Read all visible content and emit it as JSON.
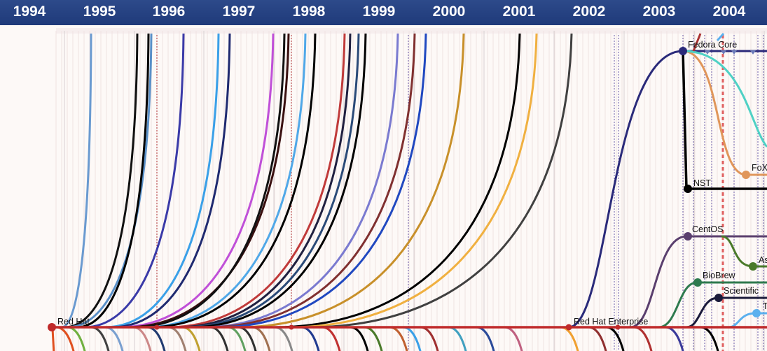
{
  "timeline": {
    "years": [
      "1994",
      "1995",
      "1996",
      "1997",
      "1998",
      "1999",
      "2000",
      "2001",
      "2002",
      "2003",
      "2004"
    ]
  },
  "distros": {
    "red_hat": "Red Hat",
    "red_hat_enterprise": "Red Hat Enterprise",
    "fedora_core": "Fedora Core",
    "nst": "NST",
    "centos": "CentOS",
    "biobrew": "BioBrew",
    "scientific": "Scientific",
    "fox_partial": "FoX",
    "as_partial": "As",
    "t_partial": "T"
  },
  "colors": {
    "header": "#24418a",
    "trunk": "#c02a2a",
    "fedora": "#2a2a7a",
    "nst": "#000000",
    "centos": "#5a3f6e",
    "biobrew": "#2e7a4e",
    "scientific": "#1a1a3a",
    "fox": "#e0965a",
    "teal": "#4fd1c5",
    "as": "#4a7a2a",
    "t": "#5ab0ee"
  }
}
